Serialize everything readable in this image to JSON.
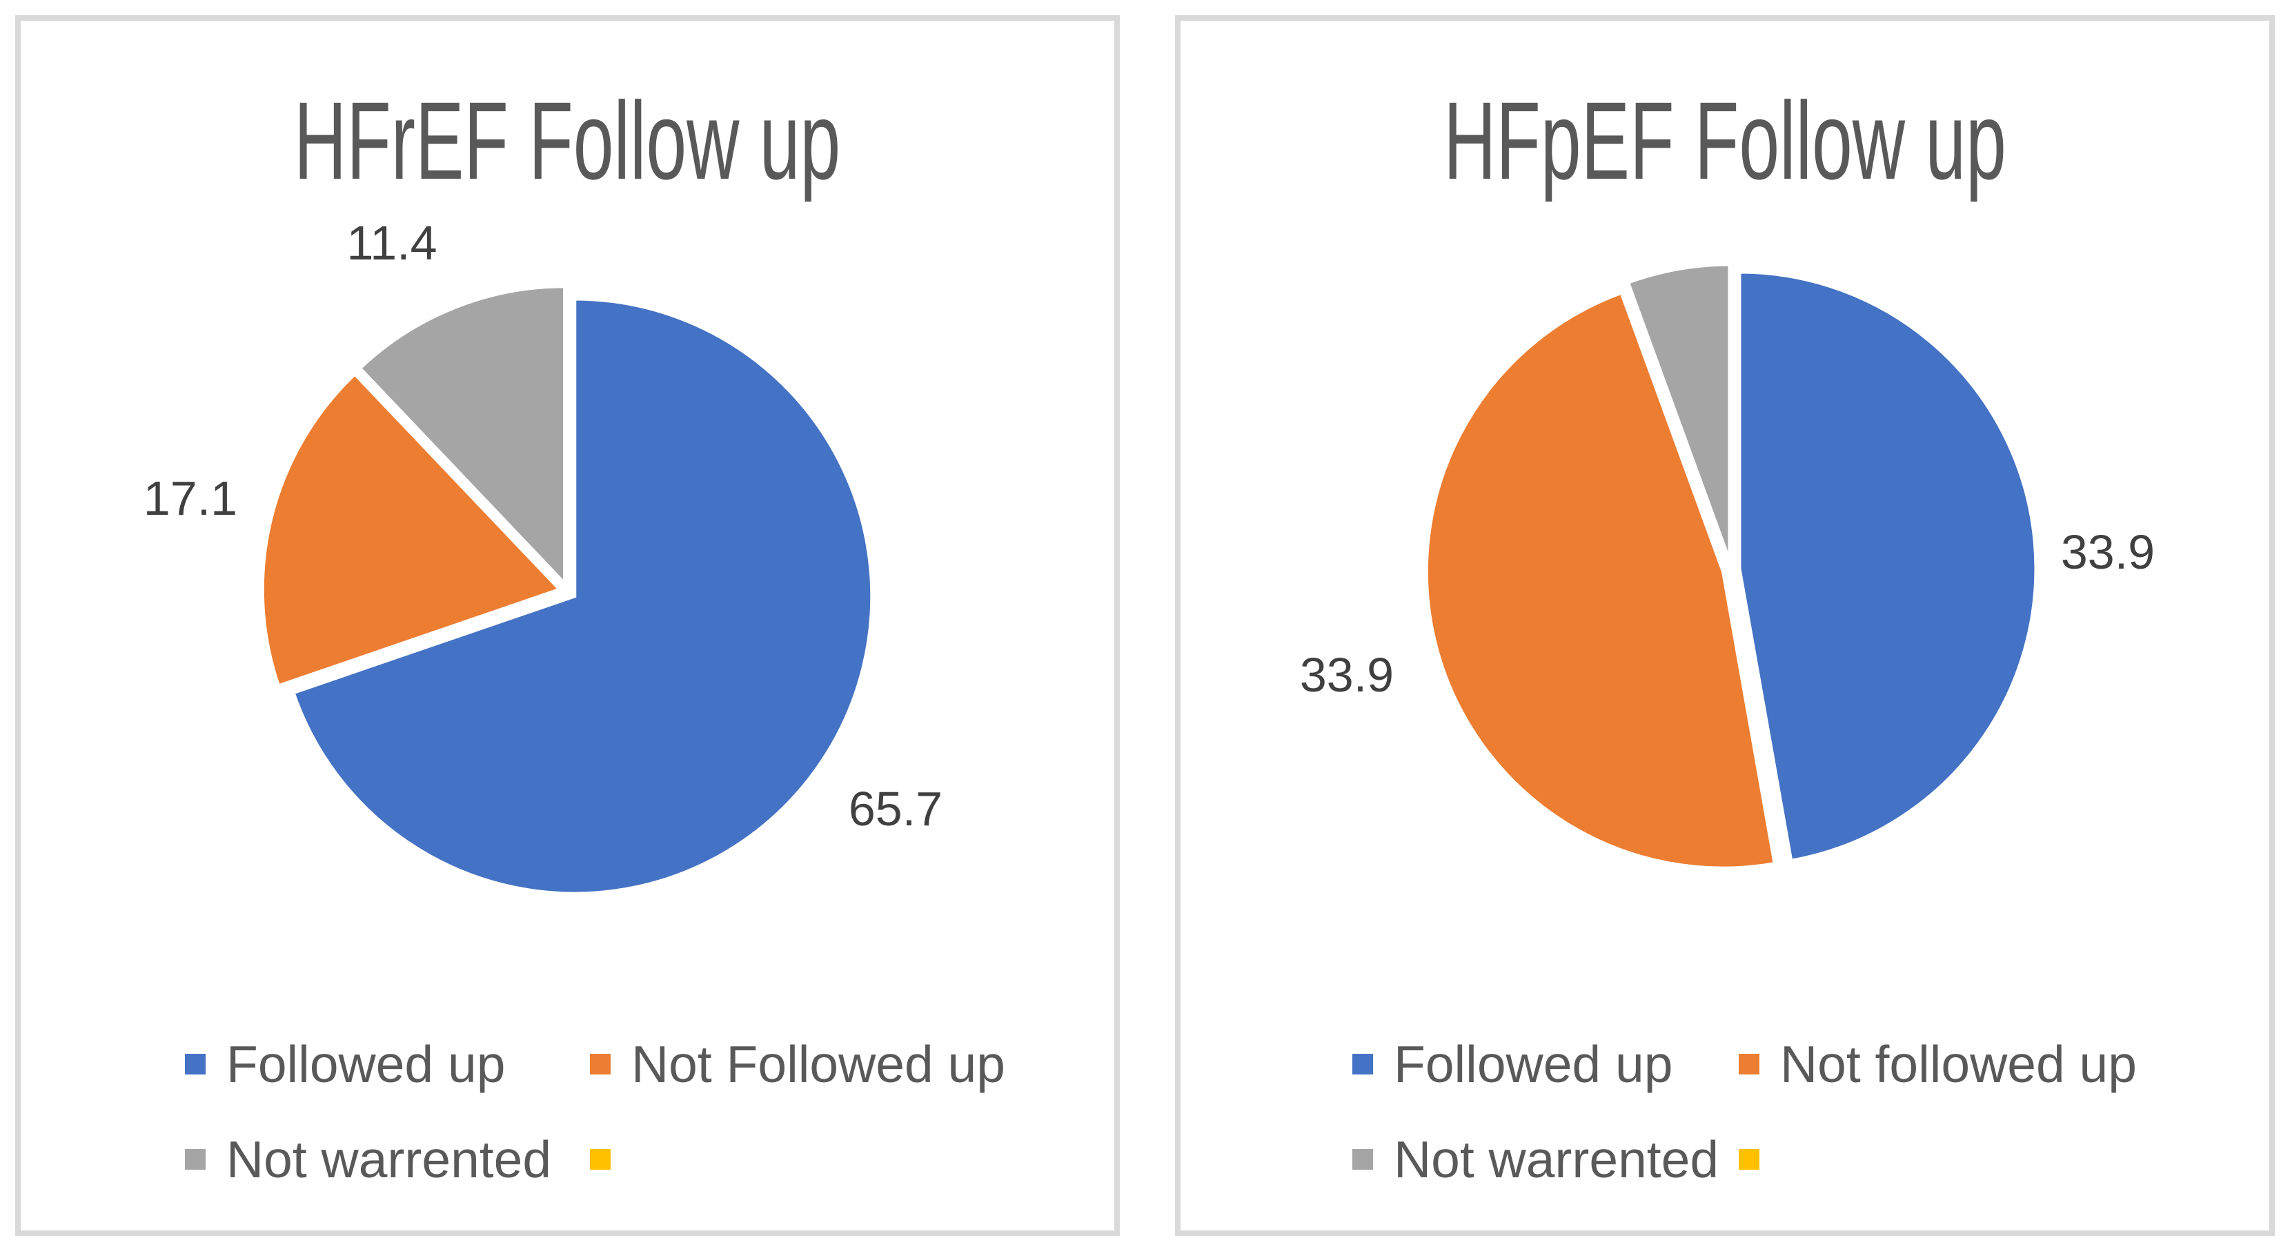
{
  "page": {
    "background": "#FFFFFF",
    "card_border_color": "#D9D9D9",
    "title_color": "#595959",
    "label_color": "#404040",
    "legend_text_color": "#595959"
  },
  "chart_data": [
    {
      "type": "pie",
      "title": "HFrEF Follow up",
      "start_angle_deg": 0,
      "direction": "clockwise",
      "legend_position": "bottom",
      "slices": [
        {
          "label": "Followed up",
          "value": 65.7,
          "data_label": "65.7",
          "color": "#4472C4"
        },
        {
          "label": "Not Followed up",
          "value": 17.1,
          "data_label": "17.1",
          "color": "#ED7D31"
        },
        {
          "label": "Not warrented",
          "value": 11.4,
          "data_label": "11.4",
          "color": "#A5A5A5"
        }
      ],
      "legend_extra": {
        "label": "",
        "color": "#FFC000"
      },
      "values_note": "labels sum to 94.2; slice angles are normalized to the total"
    },
    {
      "type": "pie",
      "title": "HFpEF Follow up",
      "start_angle_deg": 0,
      "direction": "clockwise",
      "legend_position": "bottom",
      "slices": [
        {
          "label": "Followed up",
          "value": 33.9,
          "data_label": "33.9",
          "color": "#4472C4"
        },
        {
          "label": "Not followed up",
          "value": 33.9,
          "data_label": "33.9",
          "color": "#ED7D31"
        },
        {
          "label": "Not warrented",
          "value": 4.0,
          "data_label": "",
          "color": "#A5A5A5",
          "value_estimated_from_angle": true
        }
      ],
      "legend_extra": {
        "label": "",
        "color": "#FFC000"
      }
    }
  ]
}
